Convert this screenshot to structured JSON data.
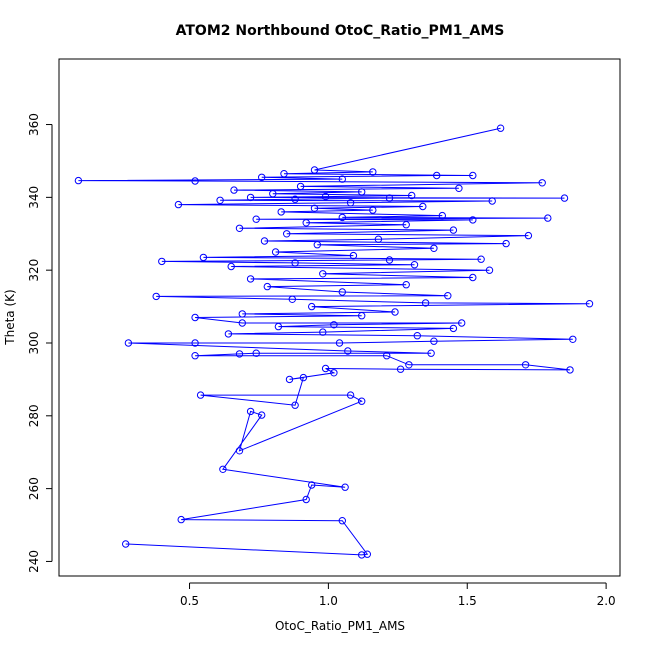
{
  "chart_data": {
    "type": "line",
    "title": "ATOM2 Northbound OtoC_Ratio_PM1_AMS",
    "xlabel": "OtoC_Ratio_PM1_AMS",
    "ylabel": "Theta (K)",
    "xlim": [
      0.03,
      2.05
    ],
    "ylim": [
      236,
      378
    ],
    "xticks": [
      0.5,
      1.0,
      1.5,
      2.0
    ],
    "xtick_labels": [
      "0.5",
      "1.0",
      "1.5",
      "2.0"
    ],
    "yticks": [
      240,
      260,
      280,
      300,
      320,
      340,
      360
    ],
    "ytick_labels": [
      "240",
      "260",
      "280",
      "300",
      "320",
      "340",
      "360"
    ],
    "grid": false,
    "marker": "open-circle",
    "series": [
      {
        "color": "#0000ff",
        "points": [
          [
            0.27,
            244.8
          ],
          [
            1.12,
            241.8
          ],
          [
            1.14,
            242.0
          ],
          [
            1.05,
            251.2
          ],
          [
            0.47,
            251.5
          ],
          [
            0.92,
            257.0
          ],
          [
            0.94,
            261.0
          ],
          [
            1.06,
            260.4
          ],
          [
            0.62,
            265.3
          ],
          [
            0.76,
            280.2
          ],
          [
            0.72,
            281.2
          ],
          [
            0.68,
            270.4
          ],
          [
            1.12,
            284.0
          ],
          [
            1.08,
            285.7
          ],
          [
            0.54,
            285.7
          ],
          [
            0.88,
            282.9
          ],
          [
            0.91,
            290.5
          ],
          [
            0.86,
            290.0
          ],
          [
            1.02,
            291.8
          ],
          [
            0.99,
            293.0
          ],
          [
            1.26,
            292.8
          ],
          [
            1.87,
            292.6
          ],
          [
            1.71,
            294.0
          ],
          [
            1.29,
            294.0
          ],
          [
            1.21,
            296.5
          ],
          [
            0.52,
            296.5
          ],
          [
            0.68,
            297.0
          ],
          [
            0.74,
            297.2
          ],
          [
            1.37,
            297.2
          ],
          [
            1.07,
            297.8
          ],
          [
            0.28,
            300.0
          ],
          [
            0.52,
            300.0
          ],
          [
            1.04,
            300.0
          ],
          [
            1.38,
            300.5
          ],
          [
            1.88,
            301.0
          ],
          [
            1.32,
            302.0
          ],
          [
            0.64,
            302.5
          ],
          [
            0.98,
            303.0
          ],
          [
            1.45,
            304.0
          ],
          [
            0.82,
            304.5
          ],
          [
            1.02,
            305.0
          ],
          [
            1.48,
            305.5
          ],
          [
            0.69,
            305.5
          ],
          [
            0.52,
            307.0
          ],
          [
            1.12,
            307.5
          ],
          [
            0.69,
            308.0
          ],
          [
            1.24,
            308.5
          ],
          [
            0.94,
            310.0
          ],
          [
            1.94,
            310.8
          ],
          [
            1.35,
            311.0
          ],
          [
            0.87,
            312.0
          ],
          [
            0.38,
            312.8
          ],
          [
            1.43,
            313.0
          ],
          [
            1.05,
            314.0
          ],
          [
            0.78,
            315.5
          ],
          [
            1.28,
            316.0
          ],
          [
            0.72,
            317.6
          ],
          [
            1.52,
            318.0
          ],
          [
            0.98,
            319.0
          ],
          [
            1.58,
            320.0
          ],
          [
            0.65,
            321.0
          ],
          [
            1.31,
            321.5
          ],
          [
            0.88,
            322.0
          ],
          [
            0.4,
            322.4
          ],
          [
            1.22,
            322.8
          ],
          [
            1.55,
            323.0
          ],
          [
            0.55,
            323.5
          ],
          [
            1.09,
            324.0
          ],
          [
            0.81,
            325.0
          ],
          [
            1.38,
            326.0
          ],
          [
            0.96,
            327.0
          ],
          [
            1.64,
            327.3
          ],
          [
            0.77,
            328.0
          ],
          [
            1.18,
            328.5
          ],
          [
            1.72,
            329.5
          ],
          [
            0.85,
            330.0
          ],
          [
            1.45,
            331.0
          ],
          [
            0.68,
            331.5
          ],
          [
            1.28,
            332.5
          ],
          [
            0.92,
            333.0
          ],
          [
            1.52,
            333.8
          ],
          [
            0.74,
            334.0
          ],
          [
            1.79,
            334.3
          ],
          [
            1.05,
            334.5
          ],
          [
            1.41,
            335.0
          ],
          [
            0.83,
            336.0
          ],
          [
            1.16,
            336.5
          ],
          [
            0.95,
            337.0
          ],
          [
            1.34,
            337.5
          ],
          [
            0.46,
            338.0
          ],
          [
            1.08,
            338.5
          ],
          [
            1.59,
            339.0
          ],
          [
            0.61,
            339.2
          ],
          [
            0.88,
            339.5
          ],
          [
            1.22,
            339.8
          ],
          [
            1.85,
            339.8
          ],
          [
            0.72,
            340.0
          ],
          [
            0.99,
            340.2
          ],
          [
            1.3,
            340.5
          ],
          [
            0.8,
            341.0
          ],
          [
            1.12,
            341.5
          ],
          [
            0.66,
            342.0
          ],
          [
            1.47,
            342.5
          ],
          [
            0.9,
            343.0
          ],
          [
            1.77,
            344.0
          ],
          [
            0.52,
            344.5
          ],
          [
            0.1,
            344.6
          ],
          [
            1.05,
            345.0
          ],
          [
            0.76,
            345.5
          ],
          [
            1.39,
            346.0
          ],
          [
            1.52,
            346.0
          ],
          [
            0.84,
            346.5
          ],
          [
            1.16,
            347.0
          ],
          [
            0.95,
            347.5
          ],
          [
            1.62,
            359.0
          ]
        ]
      }
    ]
  }
}
